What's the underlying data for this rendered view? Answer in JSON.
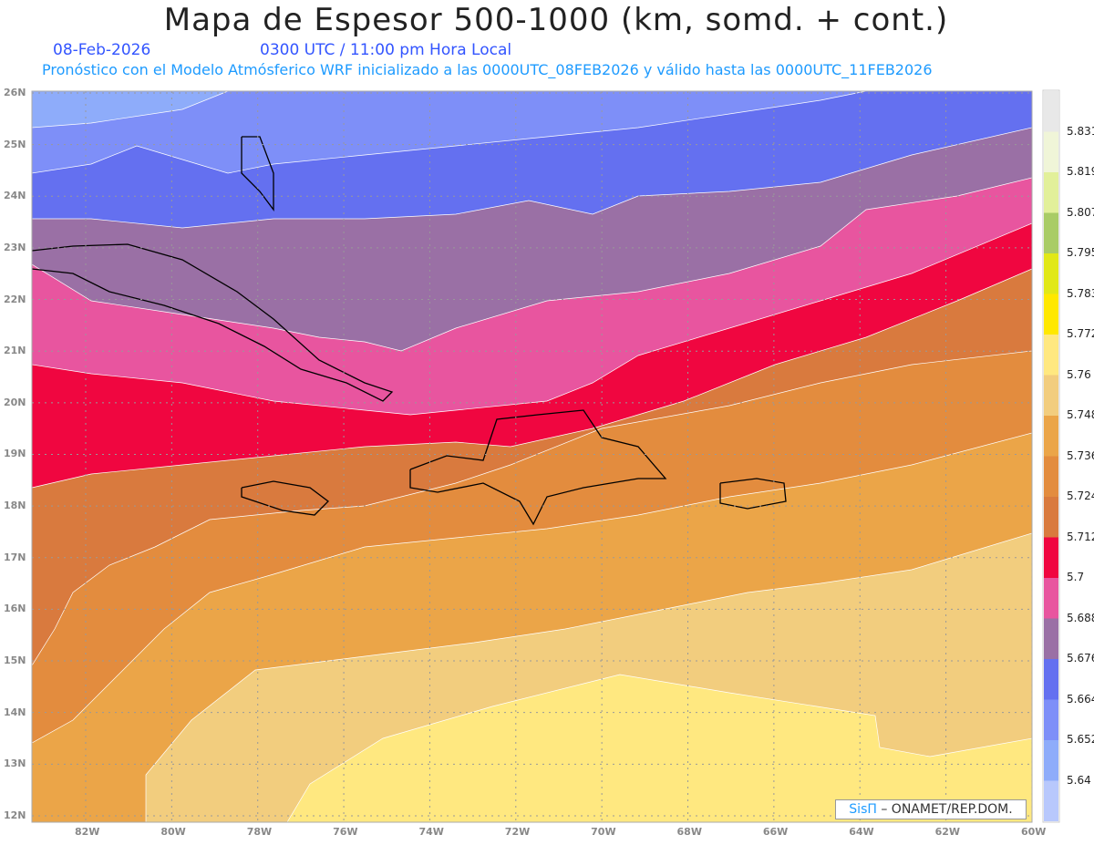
{
  "title": "Mapa de Espesor 500-1000 (km, somd. + cont.)",
  "date": "08-Feb-2026",
  "time": "0300 UTC / 11:00 pm Hora Local",
  "forecast": "Pronóstico con el Modelo Atmósferico WRF inicializado a las 0000UTC_08FEB2026 y válido hasta las  0000UTC_11FEB2026",
  "lat_labels": [
    "26N",
    "25N",
    "24N",
    "23N",
    "22N",
    "21N",
    "20N",
    "19N",
    "18N",
    "17N",
    "16N",
    "15N",
    "14N",
    "13N",
    "12N"
  ],
  "lon_labels": [
    "82W",
    "80W",
    "78W",
    "76W",
    "74W",
    "72W",
    "70W",
    "68W",
    "66W",
    "64W",
    "62W",
    "60W"
  ],
  "colorbar": {
    "colors": [
      "#e8e8e8",
      "#f0f5d8",
      "#e2f09a",
      "#a9cc66",
      "#e1e817",
      "#ffe800",
      "#ffe880",
      "#f2cd7e",
      "#eba548",
      "#e38c3e",
      "#d97a3e",
      "#f00640",
      "#e8559f",
      "#9a70a5",
      "#6470f0",
      "#7e8ff8",
      "#8eacfa",
      "#b8c8fc"
    ],
    "labels": [
      "5.831",
      "5.819",
      "5.807",
      "5.795",
      "5.783",
      "5.772",
      "5.76",
      "5.748",
      "5.736",
      "5.724",
      "5.712",
      "5.7",
      "5.688",
      "5.676",
      "5.664",
      "5.652",
      "5.64"
    ]
  },
  "credit": {
    "brand": "SisΠ",
    "text": " – ONAMET/REP.DOM."
  }
}
